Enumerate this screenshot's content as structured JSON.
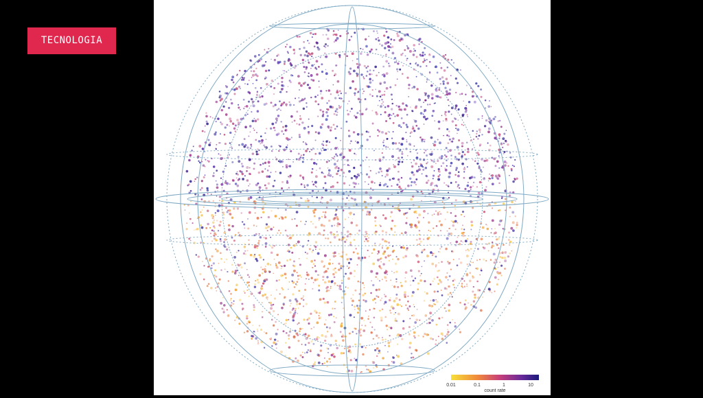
{
  "badge": "TECNOLOGIA",
  "colorbar": {
    "ticks": [
      "0.01",
      "0.1",
      "1",
      "10"
    ],
    "label": "count rate"
  }
}
